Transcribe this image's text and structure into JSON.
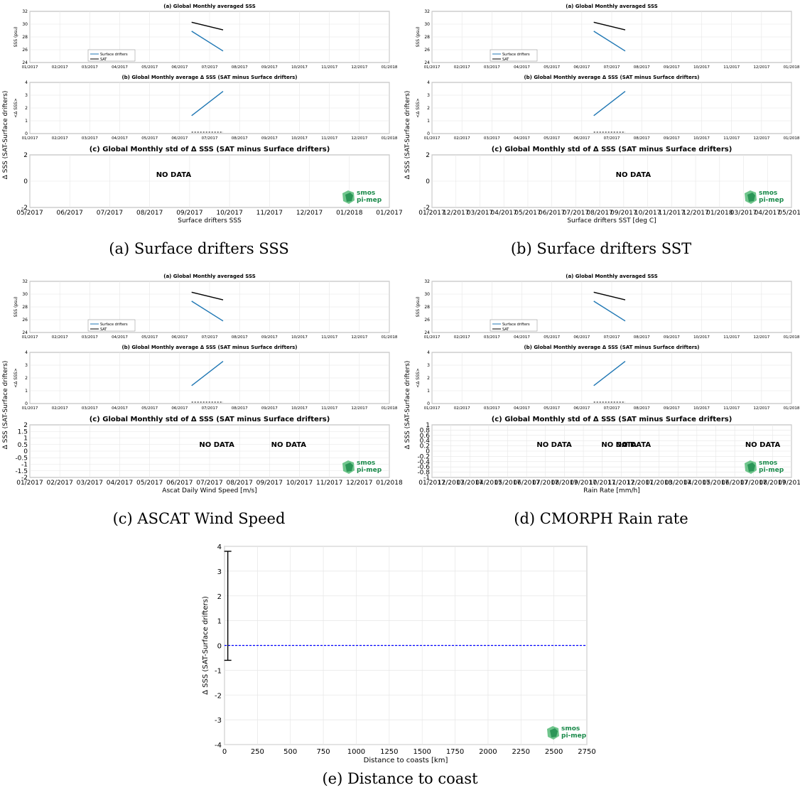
{
  "colors": {
    "drifters": "#1f77b4",
    "sat": "#000000",
    "zero_line": "#0000ff",
    "grid": "#e6e6e6",
    "logo_dark": "#1a8a4a",
    "logo_light": "#5fbf7f"
  },
  "logo": {
    "line1": "smos",
    "line2": "pi-mep"
  },
  "no_data_label": "NO DATA",
  "subfigures": [
    {
      "caption": "(a) Surface drifters SSS",
      "title_a": "(a) Global Monthly averaged SSS",
      "title_b": "(b) Global Monthly average Δ SSS (SAT minus Surface drifters)",
      "title_c": "(c) Global Monthly std of Δ SSS (SAT minus Surface drifters)",
      "ylabel_a": "SSS (psu)",
      "ylabel_b": "<Δ SSS>",
      "ylabel_c": "Δ SSS (SAT-Surface drifters)",
      "xlabel_c": "Surface drifters SSS",
      "legend": [
        "Surface drifters",
        "SAT"
      ],
      "month_ticks": [
        "01/2017",
        "02/2017",
        "03/2017",
        "04/2017",
        "05/2017",
        "06/2017",
        "07/2017",
        "08/2017",
        "09/2017",
        "10/2017",
        "11/2017",
        "12/2017",
        "01/2018"
      ],
      "yticks_a": [
        "24",
        "26",
        "28",
        "30",
        "32"
      ],
      "yticks_b": [
        "0",
        "1",
        "2",
        "3",
        "4"
      ],
      "yticks_c": [
        "-2",
        "0",
        "2"
      ],
      "xticks_c": [
        "05/2017",
        "06/2017",
        "07/2017",
        "08/2017",
        "09/2017",
        "10/2017",
        "11/2017",
        "12/2017",
        "01/2018",
        "01/2017"
      ],
      "no_data_positions": [
        0.4
      ]
    },
    {
      "caption": "(b) Surface drifters SST",
      "title_a": "(a) Global Monthly averaged SSS",
      "title_b": "(b) Global Monthly average Δ SSS (SAT minus Surface drifters)",
      "title_c": "(c) Global Monthly std of Δ SSS (SAT minus Surface drifters)",
      "ylabel_a": "SSS (psu)",
      "ylabel_b": "<Δ SSS>",
      "ylabel_c": "Δ SSS (SAT-Surface drifters)",
      "xlabel_c": "Surface drifters SST [deg C]",
      "legend": [
        "Surface drifters",
        "SAT"
      ],
      "month_ticks": [
        "01/2017",
        "02/2017",
        "03/2017",
        "04/2017",
        "05/2017",
        "06/2017",
        "07/2017",
        "08/2017",
        "09/2017",
        "10/2017",
        "11/2017",
        "12/2017",
        "01/2018"
      ],
      "yticks_a": [
        "24",
        "26",
        "28",
        "30",
        "32"
      ],
      "yticks_b": [
        "0",
        "1",
        "2",
        "3",
        "4"
      ],
      "yticks_c": [
        "-2",
        "0",
        "2"
      ],
      "xticks_c": [
        "01/2017",
        "12/2017",
        "03/2017",
        "04/2017",
        "05/2017",
        "06/2017",
        "07/2017",
        "08/2017",
        "09/2017",
        "10/2017",
        "11/2017",
        "12/2017",
        "01/2018",
        "03/2017",
        "04/2017",
        "05/2017"
      ],
      "no_data_positions": [
        0.56,
        1.05
      ]
    },
    {
      "caption": "(c) ASCAT Wind Speed",
      "title_a": "(a) Global Monthly averaged SSS",
      "title_b": "(b) Global Monthly average Δ SSS (SAT minus Surface drifters)",
      "title_c": "(c) Global Monthly std of Δ SSS (SAT minus Surface drifters)",
      "ylabel_a": "SSS (psu)",
      "ylabel_b": "<Δ SSS>",
      "ylabel_c": "Δ SSS (SAT-Surface drifters)",
      "xlabel_c": "Ascat Daily Wind Speed [m/s]",
      "legend": [
        "Surface drifters",
        "SAT"
      ],
      "month_ticks": [
        "01/2017",
        "02/2017",
        "03/2017",
        "04/2017",
        "05/2017",
        "06/2017",
        "07/2017",
        "08/2017",
        "09/2017",
        "10/2017",
        "11/2017",
        "12/2017",
        "01/2018"
      ],
      "yticks_a": [
        "24",
        "26",
        "28",
        "30",
        "32"
      ],
      "yticks_b": [
        "0",
        "1",
        "2",
        "3",
        "4"
      ],
      "yticks_c": [
        "-2",
        "-1.5",
        "-1",
        "-0.5",
        "0",
        "0.5",
        "1",
        "1.5",
        "2"
      ],
      "xticks_c": [
        "01/2017",
        "02/2017",
        "03/2017",
        "04/2017",
        "05/2017",
        "06/2017",
        "07/2017",
        "08/2017",
        "09/2017",
        "10/2017",
        "11/2017",
        "12/2017",
        "01/2018"
      ],
      "no_data_positions": [
        0.52,
        0.72
      ]
    },
    {
      "caption": "(d) CMORPH Rain rate",
      "title_a": "(a) Global Monthly averaged SSS",
      "title_b": "(b) Global Monthly average Δ SSS (SAT minus Surface drifters)",
      "title_c": "(c) Global Monthly std of Δ SSS (SAT minus Surface drifters)",
      "ylabel_a": "SSS (psu)",
      "ylabel_b": "<Δ SSS>",
      "ylabel_c": "Δ SSS (SAT-Surface drifters)",
      "xlabel_c": "Rain Rate [mm/h]",
      "legend": [
        "Surface drifters",
        "SAT"
      ],
      "month_ticks": [
        "01/2017",
        "02/2017",
        "03/2017",
        "04/2017",
        "05/2017",
        "06/2017",
        "07/2017",
        "08/2017",
        "09/2017",
        "10/2017",
        "11/2017",
        "12/2017",
        "01/2018"
      ],
      "yticks_a": [
        "24",
        "26",
        "28",
        "30",
        "32"
      ],
      "yticks_b": [
        "0",
        "1",
        "2",
        "3",
        "4"
      ],
      "yticks_c": [
        "-1",
        "-0.8",
        "-0.6",
        "-0.4",
        "-0.2",
        "0",
        "0.2",
        "0.4",
        "0.6",
        "0.8",
        "1"
      ],
      "xticks_c": [
        "01/2017",
        "12/2017",
        "03/2017",
        "04/2017",
        "05/2017",
        "06/2017",
        "07/2017",
        "08/2017",
        "09/2017",
        "10/2017",
        "11/2017",
        "12/2017",
        "01/2018",
        "03/2017",
        "04/2017",
        "05/2017",
        "06/2017",
        "07/2017",
        "08/2017",
        "09/2017"
      ],
      "no_data_positions": [
        0.34,
        0.52,
        0.56,
        0.92
      ]
    }
  ],
  "chart_data": [
    {
      "type": "line",
      "title": "(a) Global Monthly averaged SSS",
      "ylabel": "SSS (psu)",
      "ylim": [
        24,
        32
      ],
      "x": [
        "06/2017",
        "07/2017"
      ],
      "series": [
        {
          "name": "Surface drifters",
          "points": [
            [
              "06/2017",
              28.9
            ],
            [
              "07/2017",
              25.8
            ]
          ]
        },
        {
          "name": "SAT",
          "points": [
            [
              "06/2017",
              30.3
            ],
            [
              "07/2017",
              29.1
            ]
          ]
        }
      ],
      "note_x_months": [
        5.4,
        6.45
      ]
    },
    {
      "type": "line",
      "title": "(b) Global Monthly average Δ SSS (SAT minus Surface drifters)",
      "ylabel": "<Δ SSS>",
      "ylim": [
        0,
        4
      ],
      "series": [
        {
          "name": "SAT minus Surface drifters",
          "points": [
            [
              "06/2017",
              1.4
            ],
            [
              "07/2017",
              3.3
            ]
          ]
        }
      ],
      "note_x_months": [
        5.4,
        6.45
      ]
    },
    {
      "type": "scatter",
      "title": "",
      "xlabel": "Distance to coasts [km]",
      "ylabel": "Δ SSS (SAT-Surface drifters)",
      "xlim": [
        0,
        2750
      ],
      "ylim": [
        -4,
        4
      ],
      "xticks": [
        "0",
        "250",
        "500",
        "750",
        "1000",
        "1250",
        "1500",
        "1750",
        "2000",
        "2250",
        "2500",
        "2750"
      ],
      "yticks": [
        "-4",
        "-3",
        "-2",
        "-1",
        "0",
        "1",
        "2",
        "3",
        "4"
      ],
      "zero_line": 0,
      "error_bar": {
        "x": 25,
        "y_low": -0.6,
        "y_high": 3.8
      },
      "caption": "(e) Distance to coast"
    }
  ]
}
